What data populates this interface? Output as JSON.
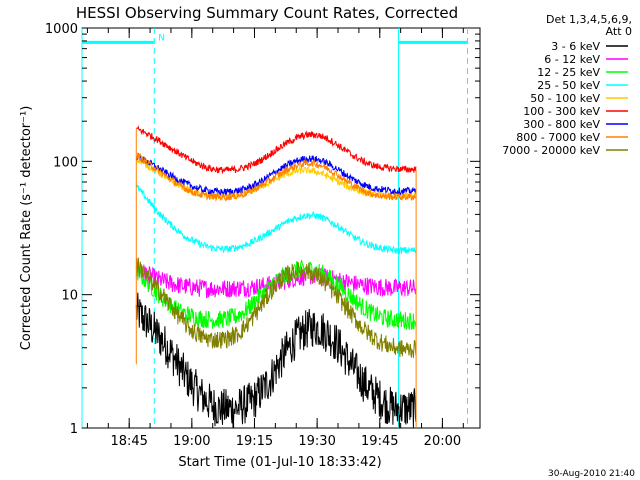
{
  "chart_data": {
    "type": "line",
    "title": "HESSI Observing Summary Count Rates, Corrected",
    "xlabel": "Start Time (01-Jul-10 18:33:42)",
    "ylabel": "Corrected Count Rate (s⁻¹ detector⁻¹)",
    "yscale": "log",
    "ylim": [
      1,
      1000
    ],
    "xlim_minutes_after_start": [
      0,
      95.3
    ],
    "yticks": [
      {
        "value": 1,
        "label": "1"
      },
      {
        "value": 10,
        "label": "10"
      },
      {
        "value": 100,
        "label": "100"
      },
      {
        "value": 1000,
        "label": "1000"
      }
    ],
    "xticks": [
      {
        "minutes": 11.3,
        "label": "18:45"
      },
      {
        "minutes": 26.3,
        "label": "19:00"
      },
      {
        "minutes": 41.3,
        "label": "19:15"
      },
      {
        "minutes": 56.3,
        "label": "19:30"
      },
      {
        "minutes": 71.3,
        "label": "19:45"
      },
      {
        "minutes": 86.3,
        "label": "20:00"
      }
    ],
    "legend_position": "outside-right",
    "legend_header": [
      "Det 1,3,4,5,6,9,",
      "Att 0"
    ],
    "markers": [
      {
        "type": "night",
        "start_min": 0,
        "end_min": 17.3,
        "solid_start": 0,
        "dashed_end": 17.3,
        "label": "N"
      },
      {
        "type": "night",
        "start_min": 75.8,
        "end_min": 92.3,
        "solid_start": 75.8,
        "dashed_end": 92.3,
        "label": ""
      }
    ],
    "bar_value": 780,
    "data_window_minutes": [
      13.0,
      80.0
    ],
    "x_minutes": [
      13,
      15,
      17,
      19,
      21,
      23,
      25,
      27,
      29,
      31,
      33,
      35,
      37,
      39,
      41,
      43,
      45,
      47,
      49,
      51,
      53,
      55,
      57,
      59,
      61,
      63,
      65,
      67,
      69,
      71,
      73,
      75,
      77,
      79
    ],
    "series": [
      {
        "name": "3 - 6 keV",
        "color": "#000000",
        "values": [
          7.5,
          6.5,
          5.5,
          4.6,
          3.8,
          3.0,
          2.4,
          2.0,
          1.7,
          1.5,
          1.4,
          1.4,
          1.4,
          1.5,
          1.6,
          1.9,
          2.3,
          3.0,
          3.8,
          4.6,
          5.3,
          5.7,
          5.6,
          5.1,
          4.3,
          3.5,
          2.8,
          2.3,
          1.9,
          1.7,
          1.5,
          1.4,
          1.4,
          1.4
        ]
      },
      {
        "name": "6 - 12 keV",
        "color": "#ff00ff",
        "values": [
          15.5,
          14.5,
          13.5,
          12.8,
          12.2,
          11.8,
          11.5,
          11.3,
          11.2,
          11.1,
          11.1,
          11.1,
          11.2,
          11.3,
          11.4,
          11.6,
          11.9,
          12.3,
          12.8,
          13.3,
          13.7,
          13.8,
          13.6,
          13.3,
          12.9,
          12.5,
          12.1,
          11.8,
          11.6,
          11.4,
          11.3,
          11.2,
          11.2,
          11.2
        ]
      },
      {
        "name": "12 - 25 keV",
        "color": "#00ff00",
        "values": [
          15.0,
          13.0,
          11.2,
          9.6,
          8.4,
          7.6,
          7.1,
          6.8,
          6.6,
          6.5,
          6.5,
          6.6,
          6.9,
          7.5,
          8.6,
          10.0,
          11.5,
          13.0,
          14.3,
          15.2,
          15.6,
          15.5,
          14.8,
          13.6,
          12.1,
          10.6,
          9.3,
          8.2,
          7.4,
          6.9,
          6.6,
          6.5,
          6.4,
          6.4
        ]
      },
      {
        "name": "25 - 50 keV",
        "color": "#00ffff",
        "values": [
          65,
          55,
          46,
          39,
          34,
          30,
          27,
          25,
          23.5,
          22.5,
          22,
          22,
          22.5,
          23.5,
          25,
          27,
          29.5,
          32,
          35,
          37.5,
          39,
          39.5,
          38.5,
          36,
          33,
          30,
          27,
          25,
          23.5,
          22.5,
          22,
          21.5,
          21.5,
          21.5
        ]
      },
      {
        "name": "50 - 100 keV",
        "color": "#ffcc00",
        "values": [
          105,
          96,
          88,
          80,
          73,
          67,
          62,
          58,
          56,
          55,
          55,
          55,
          56,
          58,
          61,
          65,
          70,
          75,
          80,
          84,
          86,
          85,
          82,
          77,
          71,
          66,
          62,
          59,
          57,
          56,
          55,
          55,
          55,
          55
        ]
      },
      {
        "name": "100 - 300 keV",
        "color": "#ff0000",
        "values": [
          175,
          165,
          152,
          140,
          127,
          116,
          106,
          98,
          92,
          88,
          86,
          86,
          87,
          90,
          95,
          103,
          113,
          125,
          137,
          148,
          156,
          159,
          156,
          147,
          134,
          121,
          110,
          101,
          95,
          91,
          89,
          88,
          87,
          87
        ]
      },
      {
        "name": "300 - 800 keV",
        "color": "#0000ff",
        "values": [
          110,
          102,
          94,
          86,
          79,
          73,
          68,
          64,
          61,
          60,
          59,
          59,
          60,
          62,
          66,
          71,
          78,
          86,
          93,
          100,
          104,
          105,
          102,
          96,
          88,
          80,
          73,
          68,
          64,
          62,
          61,
          60,
          60,
          60
        ]
      },
      {
        "name": "800 - 7000 keV",
        "color": "#ff8000",
        "values": [
          112,
          101,
          91,
          82,
          74,
          67,
          62,
          58,
          55.5,
          54.5,
          54,
          54,
          55,
          57,
          61,
          66,
          72,
          79,
          86,
          92,
          96,
          97,
          94,
          88,
          80,
          72,
          66,
          61,
          57.5,
          55.5,
          54.5,
          54,
          54,
          54
        ]
      },
      {
        "name": "7000 - 20000 keV",
        "color": "#808000",
        "values": [
          17,
          14.5,
          12.2,
          10.2,
          8.5,
          7.0,
          5.9,
          5.2,
          4.8,
          4.6,
          4.6,
          4.7,
          5.0,
          5.7,
          6.8,
          8.4,
          10.4,
          12.4,
          14.0,
          15.0,
          15.2,
          14.6,
          13.3,
          11.6,
          9.8,
          8.2,
          6.8,
          5.7,
          5.0,
          4.5,
          4.2,
          4.0,
          3.9,
          3.9
        ]
      }
    ]
  },
  "footer_timestamp": "30-Aug-2010 21:40"
}
